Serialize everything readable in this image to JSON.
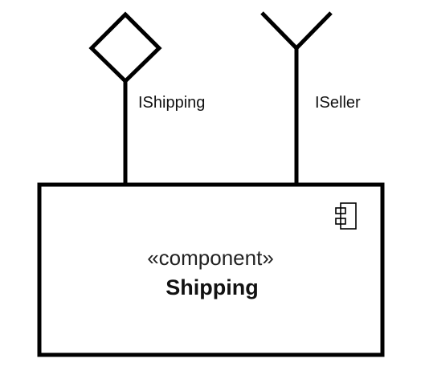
{
  "diagram": {
    "type": "uml-component",
    "component": {
      "stereotype": "«component»",
      "name": "Shipping",
      "icon": "component-icon"
    },
    "interfaces": [
      {
        "label": "IShipping",
        "kind": "provided",
        "symbol": "diamond-icon"
      },
      {
        "label": "ISeller",
        "kind": "required",
        "symbol": "fork-icon"
      }
    ]
  }
}
